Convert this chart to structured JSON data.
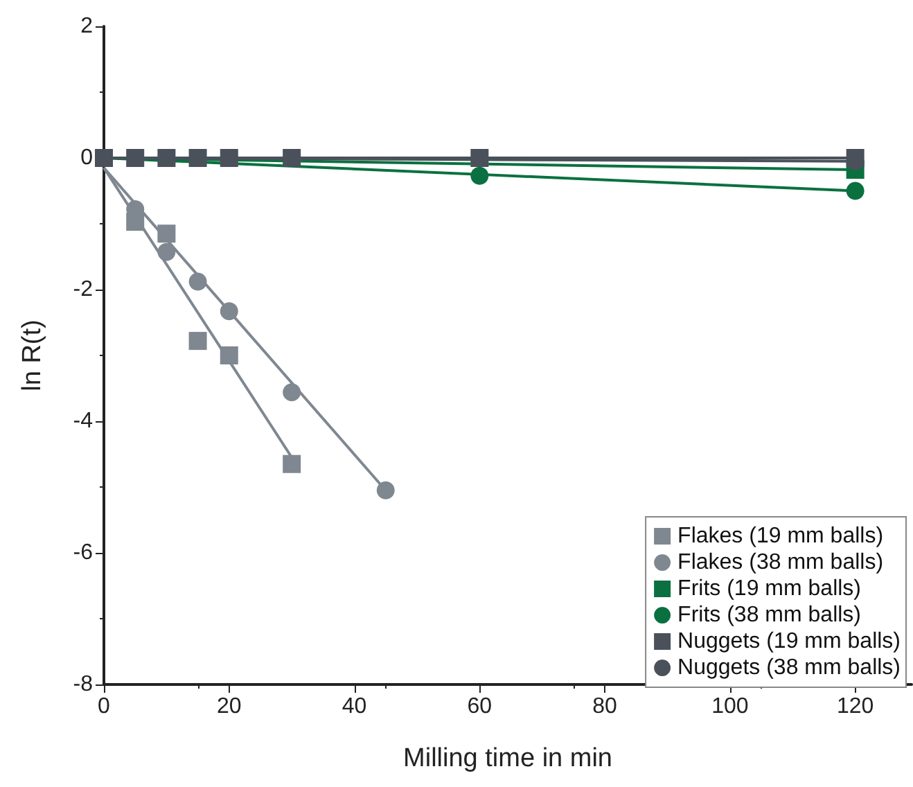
{
  "chart_data": {
    "type": "scatter",
    "xlabel": "Milling time in min",
    "ylabel": "ln R(t)",
    "xlim": [
      0,
      129
    ],
    "xticks": [
      0,
      20,
      40,
      60,
      80,
      100,
      120
    ],
    "ylim": [
      -8,
      2
    ],
    "yticks": [
      -8,
      -6,
      -4,
      -2,
      0,
      2
    ],
    "grid": false,
    "legend": "bottom right",
    "series": [
      {
        "name": "Flakes (19 mm balls)",
        "marker": "square",
        "color": "#7f8790",
        "x": [
          5,
          10,
          15,
          20,
          30
        ],
        "values": [
          -0.97,
          -1.15,
          -2.78,
          -3.0,
          -4.65
        ]
      },
      {
        "name": "Flakes (38 mm balls)",
        "marker": "circle",
        "color": "#7f8790",
        "x": [
          5,
          10,
          15,
          20,
          30,
          45
        ],
        "values": [
          -0.78,
          -1.43,
          -1.88,
          -2.33,
          -3.56,
          -5.05
        ]
      },
      {
        "name": "Frits (19 mm balls)",
        "marker": "square",
        "color": "#0a7040",
        "x": [
          120
        ],
        "values": [
          -0.18
        ]
      },
      {
        "name": "Frits (38 mm balls)",
        "marker": "circle",
        "color": "#0a7040",
        "x": [
          60,
          120
        ],
        "values": [
          -0.27,
          -0.5
        ]
      },
      {
        "name": "Nuggets (19 mm balls)",
        "marker": "square",
        "color": "#4a515b",
        "x": [
          0,
          5,
          10,
          15,
          20,
          30,
          60,
          120
        ],
        "values": [
          0,
          0,
          0,
          0,
          0,
          0,
          0,
          0
        ]
      },
      {
        "name": "Nuggets (38 mm balls)",
        "marker": "circle",
        "color": "#4a515b",
        "x": [
          120
        ],
        "values": [
          -0.05
        ]
      },
      {
        "type": "line",
        "marker": "none",
        "color": "#7f8790",
        "x": [
          0,
          30
        ],
        "values": [
          -0.15,
          -4.55
        ]
      },
      {
        "type": "line",
        "marker": "none",
        "color": "#7f8790",
        "x": [
          0,
          45
        ],
        "values": [
          -0.15,
          -5.05
        ]
      },
      {
        "type": "line",
        "marker": "none",
        "color": "#0a7040",
        "x": [
          0,
          120
        ],
        "values": [
          0,
          -0.18
        ]
      },
      {
        "type": "line",
        "marker": "none",
        "color": "#0a7040",
        "x": [
          0,
          120
        ],
        "values": [
          0,
          -0.5
        ]
      },
      {
        "type": "line",
        "marker": "none",
        "color": "#4a515b",
        "x": [
          0,
          120
        ],
        "values": [
          0,
          0
        ]
      },
      {
        "type": "line",
        "marker": "none",
        "color": "#4a515b",
        "x": [
          0,
          120
        ],
        "values": [
          0,
          -0.05
        ]
      }
    ]
  }
}
